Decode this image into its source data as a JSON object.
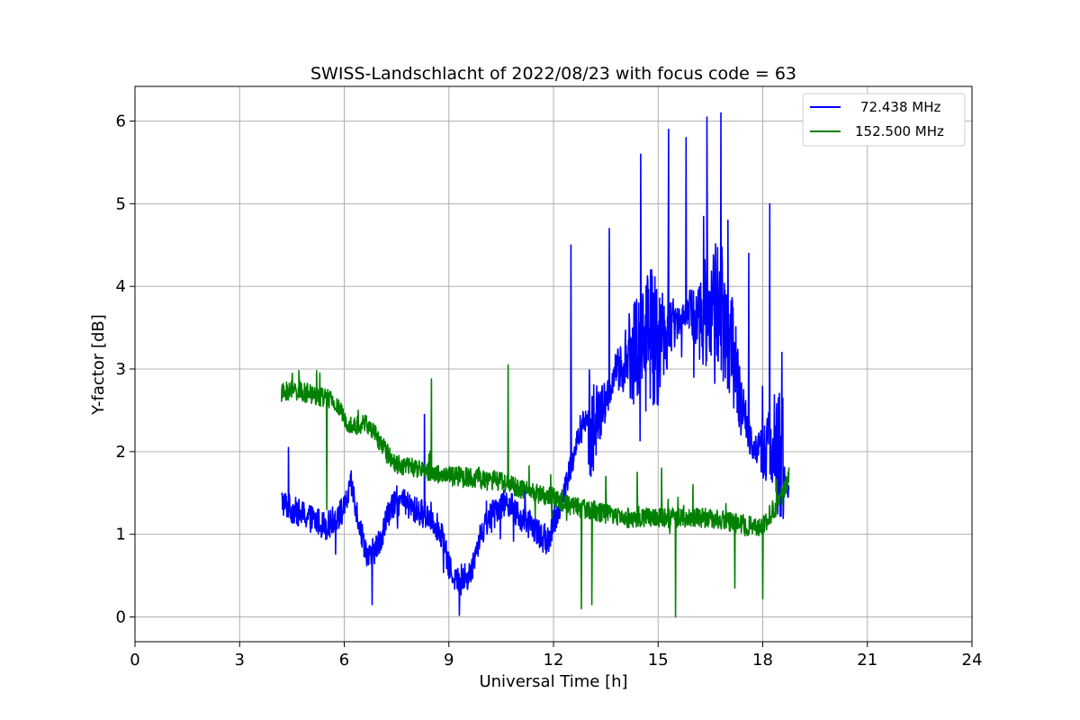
{
  "chart_data": {
    "type": "line",
    "title": "SWISS-Landschlacht of 2022/08/23 with focus code = 63",
    "xlabel": "Universal Time [h]",
    "ylabel": "Y-factor [dB]",
    "xlim": [
      0,
      24
    ],
    "ylim": [
      -0.3,
      6.42
    ],
    "x_ticks": [
      "0",
      "3",
      "6",
      "9",
      "12",
      "15",
      "18",
      "21",
      "24"
    ],
    "y_ticks": [
      "0",
      "1",
      "2",
      "3",
      "4",
      "5",
      "6"
    ],
    "grid": true,
    "legend_position": "top-right",
    "series": [
      {
        "name": "72.438 MHz",
        "color": "#0000ff",
        "x": [
          4.2,
          4.5,
          5.0,
          5.5,
          6.0,
          6.2,
          6.5,
          6.7,
          7.0,
          7.3,
          7.6,
          8.0,
          8.5,
          8.8,
          9.0,
          9.3,
          9.6,
          9.9,
          10.3,
          10.7,
          11.0,
          11.4,
          11.8,
          12.0,
          12.3,
          12.6,
          12.9,
          13.2,
          13.5,
          13.8,
          14.1,
          14.4,
          14.7,
          15.0,
          15.3,
          15.6,
          15.9,
          16.2,
          16.5,
          16.8,
          17.1,
          17.4,
          17.7,
          18.0,
          18.3,
          18.6,
          18.75
        ],
        "y": [
          1.4,
          1.3,
          1.2,
          1.1,
          1.3,
          1.6,
          1.0,
          0.7,
          0.9,
          1.3,
          1.4,
          1.3,
          1.2,
          1.0,
          0.6,
          0.4,
          0.5,
          1.0,
          1.3,
          1.4,
          1.2,
          1.1,
          0.9,
          1.1,
          1.5,
          2.0,
          2.4,
          2.3,
          2.6,
          3.0,
          3.1,
          3.3,
          3.4,
          3.3,
          3.5,
          3.6,
          3.7,
          3.6,
          3.8,
          3.7,
          3.3,
          2.5,
          2.1,
          2.0,
          2.1,
          1.8,
          1.5
        ],
        "spikes": [
          [
            4.4,
            2.05
          ],
          [
            6.8,
            0.15
          ],
          [
            8.3,
            2.45
          ],
          [
            9.3,
            0.02
          ],
          [
            12.5,
            4.5
          ],
          [
            13.6,
            4.7
          ],
          [
            14.5,
            5.6
          ],
          [
            15.3,
            5.9
          ],
          [
            15.8,
            5.8
          ],
          [
            16.4,
            6.05
          ],
          [
            16.8,
            6.1
          ],
          [
            17.0,
            4.8
          ],
          [
            17.6,
            4.4
          ],
          [
            18.2,
            5.0
          ],
          [
            18.55,
            3.2
          ]
        ]
      },
      {
        "name": "152.500 MHz",
        "color": "#008000",
        "x": [
          4.2,
          4.5,
          5.0,
          5.5,
          5.8,
          6.0,
          6.3,
          6.6,
          6.9,
          7.2,
          7.5,
          8.0,
          8.5,
          9.0,
          9.5,
          10.0,
          10.5,
          11.0,
          11.5,
          12.0,
          12.5,
          13.0,
          13.5,
          14.0,
          14.5,
          15.0,
          15.5,
          16.0,
          16.5,
          17.0,
          17.5,
          18.0,
          18.3,
          18.6,
          18.75
        ],
        "y": [
          2.7,
          2.75,
          2.7,
          2.65,
          2.55,
          2.4,
          2.3,
          2.35,
          2.2,
          2.0,
          1.85,
          1.8,
          1.75,
          1.7,
          1.7,
          1.65,
          1.65,
          1.55,
          1.5,
          1.45,
          1.35,
          1.3,
          1.25,
          1.2,
          1.2,
          1.2,
          1.2,
          1.2,
          1.2,
          1.15,
          1.1,
          1.1,
          1.3,
          1.5,
          1.7
        ],
        "spikes": [
          [
            4.7,
            2.98
          ],
          [
            5.3,
            2.95
          ],
          [
            5.5,
            1.3
          ],
          [
            6.4,
            2.5
          ],
          [
            8.5,
            2.88
          ],
          [
            10.7,
            3.05
          ],
          [
            12.8,
            0.1
          ],
          [
            13.1,
            0.15
          ],
          [
            13.5,
            1.7
          ],
          [
            14.4,
            1.75
          ],
          [
            15.1,
            1.8
          ],
          [
            15.5,
            0.0
          ],
          [
            16.0,
            1.6
          ],
          [
            17.2,
            0.35
          ],
          [
            18.0,
            0.22
          ]
        ]
      }
    ]
  }
}
